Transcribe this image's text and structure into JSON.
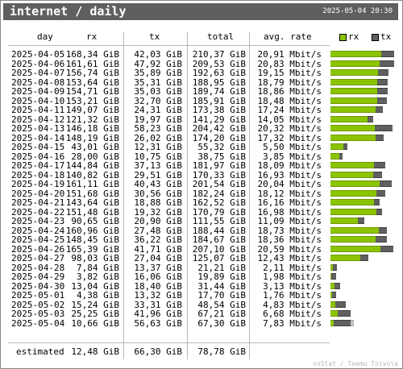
{
  "title": "internet / daily",
  "generated": "2025-05-04 20:30",
  "headers": {
    "day": "day",
    "rx": "rx",
    "tx": "tx",
    "total": "total",
    "rate": "avg. rate"
  },
  "legend": {
    "rx": "rx",
    "tx": "tx"
  },
  "colors": {
    "rx": "#8bc400",
    "tx": "#606060",
    "titlebar": "#5f5f5f",
    "tx_estimated": "#c0c0c0"
  },
  "rows": [
    {
      "day": "2025-04-05",
      "rx": "168,34 GiB",
      "tx": "42,03 GiB",
      "total": "210,37 GiB",
      "rate": "20,91 Mbit/s",
      "rx_gib": 168.34,
      "tx_gib": 42.03
    },
    {
      "day": "2025-04-06",
      "rx": "161,61 GiB",
      "tx": "47,92 GiB",
      "total": "209,53 GiB",
      "rate": "20,83 Mbit/s",
      "rx_gib": 161.61,
      "tx_gib": 47.92
    },
    {
      "day": "2025-04-07",
      "rx": "156,74 GiB",
      "tx": "35,89 GiB",
      "total": "192,63 GiB",
      "rate": "19,15 Mbit/s",
      "rx_gib": 156.74,
      "tx_gib": 35.89
    },
    {
      "day": "2025-04-08",
      "rx": "153,64 GiB",
      "tx": "35,31 GiB",
      "total": "188,95 GiB",
      "rate": "18,79 Mbit/s",
      "rx_gib": 153.64,
      "tx_gib": 35.31
    },
    {
      "day": "2025-04-09",
      "rx": "154,71 GiB",
      "tx": "35,03 GiB",
      "total": "189,74 GiB",
      "rate": "18,86 Mbit/s",
      "rx_gib": 154.71,
      "tx_gib": 35.03
    },
    {
      "day": "2025-04-10",
      "rx": "153,21 GiB",
      "tx": "32,70 GiB",
      "total": "185,91 GiB",
      "rate": "18,48 Mbit/s",
      "rx_gib": 153.21,
      "tx_gib": 32.7
    },
    {
      "day": "2025-04-11",
      "rx": "149,07 GiB",
      "tx": "24,31 GiB",
      "total": "173,38 GiB",
      "rate": "17,24 Mbit/s",
      "rx_gib": 149.07,
      "tx_gib": 24.31
    },
    {
      "day": "2025-04-12",
      "rx": "121,32 GiB",
      "tx": "19,97 GiB",
      "total": "141,29 GiB",
      "rate": "14,05 Mbit/s",
      "rx_gib": 121.32,
      "tx_gib": 19.97
    },
    {
      "day": "2025-04-13",
      "rx": "146,18 GiB",
      "tx": "58,23 GiB",
      "total": "204,42 GiB",
      "rate": "20,32 Mbit/s",
      "rx_gib": 146.18,
      "tx_gib": 58.23
    },
    {
      "day": "2025-04-14",
      "rx": "148,19 GiB",
      "tx": "26,02 GiB",
      "total": "174,20 GiB",
      "rate": "17,32 Mbit/s",
      "rx_gib": 148.19,
      "tx_gib": 26.02
    },
    {
      "day": "2025-04-15",
      "rx": "43,01 GiB",
      "tx": "12,31 GiB",
      "total": "55,32 GiB",
      "rate": "5,50 Mbit/s",
      "rx_gib": 43.01,
      "tx_gib": 12.31
    },
    {
      "day": "2025-04-16",
      "rx": "28,00 GiB",
      "tx": "10,75 GiB",
      "total": "38,75 GiB",
      "rate": "3,85 Mbit/s",
      "rx_gib": 28.0,
      "tx_gib": 10.75
    },
    {
      "day": "2025-04-17",
      "rx": "144,84 GiB",
      "tx": "37,13 GiB",
      "total": "181,97 GiB",
      "rate": "18,09 Mbit/s",
      "rx_gib": 144.84,
      "tx_gib": 37.13
    },
    {
      "day": "2025-04-18",
      "rx": "140,82 GiB",
      "tx": "29,51 GiB",
      "total": "170,33 GiB",
      "rate": "16,93 Mbit/s",
      "rx_gib": 140.82,
      "tx_gib": 29.51
    },
    {
      "day": "2025-04-19",
      "rx": "161,11 GiB",
      "tx": "40,43 GiB",
      "total": "201,54 GiB",
      "rate": "20,04 Mbit/s",
      "rx_gib": 161.11,
      "tx_gib": 40.43
    },
    {
      "day": "2025-04-20",
      "rx": "151,68 GiB",
      "tx": "30,56 GiB",
      "total": "182,24 GiB",
      "rate": "18,12 Mbit/s",
      "rx_gib": 151.68,
      "tx_gib": 30.56
    },
    {
      "day": "2025-04-21",
      "rx": "143,64 GiB",
      "tx": "18,88 GiB",
      "total": "162,52 GiB",
      "rate": "16,16 Mbit/s",
      "rx_gib": 143.64,
      "tx_gib": 18.88
    },
    {
      "day": "2025-04-22",
      "rx": "151,48 GiB",
      "tx": "19,32 GiB",
      "total": "170,79 GiB",
      "rate": "16,98 Mbit/s",
      "rx_gib": 151.48,
      "tx_gib": 19.32
    },
    {
      "day": "2025-04-23",
      "rx": "90,65 GiB",
      "tx": "20,90 GiB",
      "total": "111,55 GiB",
      "rate": "11,09 Mbit/s",
      "rx_gib": 90.65,
      "tx_gib": 20.9
    },
    {
      "day": "2025-04-24",
      "rx": "160,96 GiB",
      "tx": "27,48 GiB",
      "total": "188,44 GiB",
      "rate": "18,73 Mbit/s",
      "rx_gib": 160.96,
      "tx_gib": 27.48
    },
    {
      "day": "2025-04-25",
      "rx": "148,45 GiB",
      "tx": "36,22 GiB",
      "total": "184,67 GiB",
      "rate": "18,36 Mbit/s",
      "rx_gib": 148.45,
      "tx_gib": 36.22
    },
    {
      "day": "2025-04-26",
      "rx": "165,39 GiB",
      "tx": "41,71 GiB",
      "total": "207,10 GiB",
      "rate": "20,59 Mbit/s",
      "rx_gib": 165.39,
      "tx_gib": 41.71
    },
    {
      "day": "2025-04-27",
      "rx": "98,03 GiB",
      "tx": "27,04 GiB",
      "total": "125,07 GiB",
      "rate": "12,43 Mbit/s",
      "rx_gib": 98.03,
      "tx_gib": 27.04
    },
    {
      "day": "2025-04-28",
      "rx": "7,84 GiB",
      "tx": "13,37 GiB",
      "total": "21,21 GiB",
      "rate": "2,11 Mbit/s",
      "rx_gib": 7.84,
      "tx_gib": 13.37
    },
    {
      "day": "2025-04-29",
      "rx": "3,82 GiB",
      "tx": "16,06 GiB",
      "total": "19,89 GiB",
      "rate": "1,98 Mbit/s",
      "rx_gib": 3.82,
      "tx_gib": 16.06
    },
    {
      "day": "2025-04-30",
      "rx": "13,04 GiB",
      "tx": "18,40 GiB",
      "total": "31,44 GiB",
      "rate": "3,13 Mbit/s",
      "rx_gib": 13.04,
      "tx_gib": 18.4
    },
    {
      "day": "2025-05-01",
      "rx": "4,38 GiB",
      "tx": "13,32 GiB",
      "total": "17,70 GiB",
      "rate": "1,76 Mbit/s",
      "rx_gib": 4.38,
      "tx_gib": 13.32
    },
    {
      "day": "2025-05-02",
      "rx": "15,24 GiB",
      "tx": "33,31 GiB",
      "total": "48,54 GiB",
      "rate": "4,83 Mbit/s",
      "rx_gib": 15.24,
      "tx_gib": 33.31
    },
    {
      "day": "2025-05-03",
      "rx": "25,25 GiB",
      "tx": "41,96 GiB",
      "total": "67,21 GiB",
      "rate": "6,68 Mbit/s",
      "rx_gib": 25.25,
      "tx_gib": 41.96
    },
    {
      "day": "2025-05-04",
      "rx": "10,66 GiB",
      "tx": "56,63 GiB",
      "total": "67,30 GiB",
      "rate": "7,83 Mbit/s",
      "rx_gib": 10.66,
      "tx_gib": 56.63
    }
  ],
  "estimated": {
    "label": "estimated",
    "rx": "12,48 GiB",
    "tx": "66,30 GiB",
    "total": "78,78 GiB",
    "rx_gib": 12.48,
    "tx_gib": 66.3
  },
  "footer": "vnStat / Teemu Toivola"
}
